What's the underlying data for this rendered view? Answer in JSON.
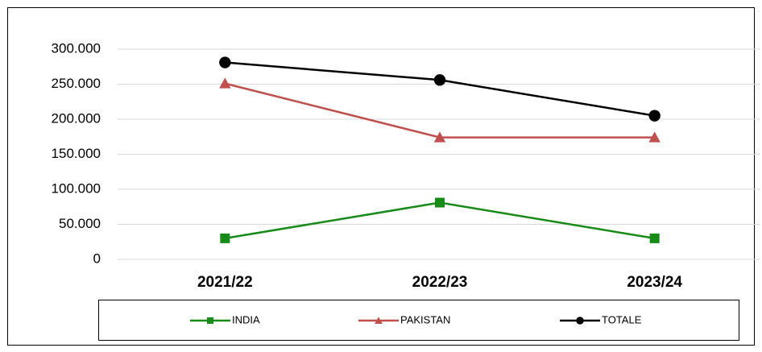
{
  "chart_data": {
    "type": "line",
    "categories": [
      "2021/22",
      "2022/23",
      "2023/24"
    ],
    "series": [
      {
        "name": "INDIA",
        "color": "#178a17",
        "marker": "square",
        "values": [
          30000,
          81000,
          30000
        ]
      },
      {
        "name": "PAKISTAN",
        "color": "#c0504d",
        "marker": "triangle",
        "values": [
          251000,
          174000,
          174000
        ]
      },
      {
        "name": "TOTALE",
        "color": "#000000",
        "marker": "circle",
        "values": [
          281000,
          256000,
          205000
        ]
      }
    ],
    "ylim": [
      0,
      300000
    ],
    "yticks": [
      0,
      {
        "value": 50000,
        "label": "50.000"
      },
      {
        "value": 100000,
        "label": "100.000"
      },
      {
        "value": 150000,
        "label": "150.000"
      },
      {
        "value": 200000,
        "label": "200.000"
      },
      {
        "value": 250000,
        "label": "250.000"
      },
      {
        "value": 300000,
        "label": "300.000"
      }
    ],
    "grid": true
  }
}
